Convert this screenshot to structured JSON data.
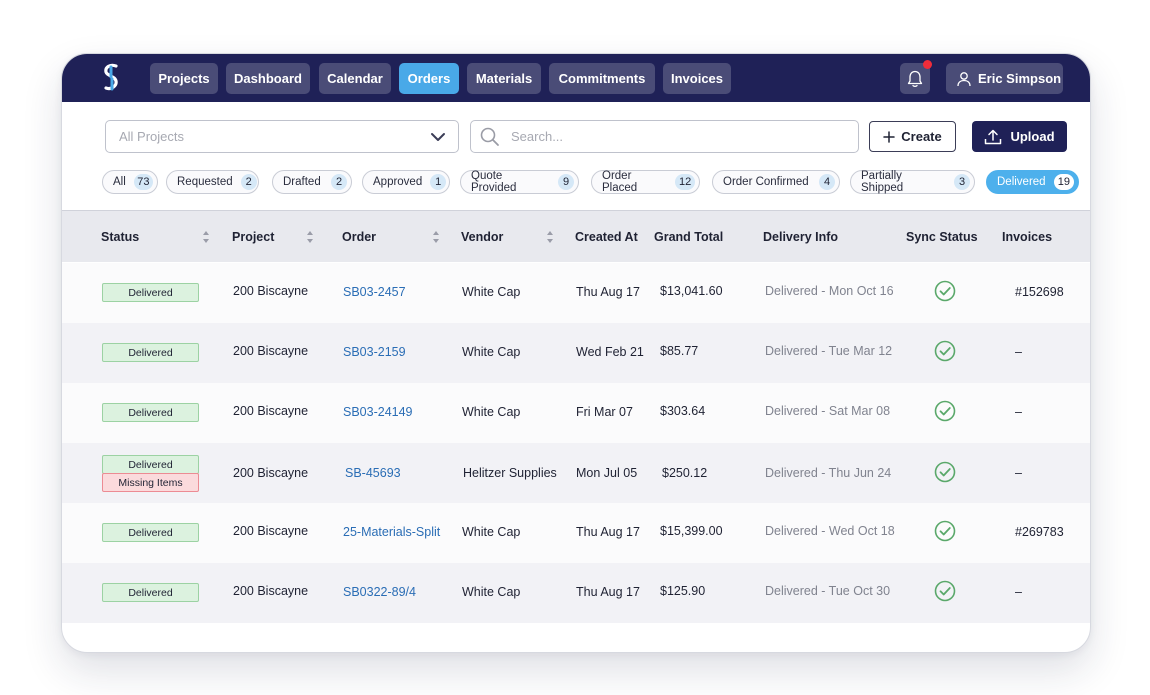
{
  "nav": {
    "items": [
      {
        "label": "Projects",
        "active": false
      },
      {
        "label": "Dashboard",
        "active": false
      },
      {
        "label": "Calendar",
        "active": false
      },
      {
        "label": "Orders",
        "active": true
      },
      {
        "label": "Materials",
        "active": false
      },
      {
        "label": "Commitments",
        "active": false
      },
      {
        "label": "Invoices",
        "active": false
      }
    ],
    "user_name": "Eric Simpson",
    "has_notification": true
  },
  "toolbar": {
    "project_select_value": "All Projects",
    "search_placeholder": "Search...",
    "create_label": "Create",
    "upload_label": "Upload"
  },
  "filters": [
    {
      "label": "All",
      "count": "73",
      "active": false
    },
    {
      "label": "Requested",
      "count": "2",
      "active": false
    },
    {
      "label": "Drafted",
      "count": "2",
      "active": false
    },
    {
      "label": "Approved",
      "count": "1",
      "active": false
    },
    {
      "label": "Quote Provided",
      "count": "9",
      "active": false
    },
    {
      "label": "Order Placed",
      "count": "12",
      "active": false
    },
    {
      "label": "Order Confirmed",
      "count": "4",
      "active": false
    },
    {
      "label": "Partially Shipped",
      "count": "3",
      "active": false
    },
    {
      "label": "Delivered",
      "count": "19",
      "active": true
    }
  ],
  "table": {
    "columns": {
      "status": "Status",
      "project": "Project",
      "order": "Order",
      "vendor": "Vendor",
      "created_at": "Created At",
      "grand_total": "Grand Total",
      "delivery_info": "Delivery Info",
      "sync_status": "Sync Status",
      "invoices": "Invoices"
    },
    "rows": [
      {
        "status": "Delivered",
        "status_extra": "",
        "project": "200 Biscayne",
        "order": "SB03-2457",
        "vendor": "White Cap",
        "created_at": "Thu Aug 17",
        "grand_total": "$13,041.60",
        "delivery_info": "Delivered - Mon Oct 16",
        "synced": true,
        "invoice": "#152698"
      },
      {
        "status": "Delivered",
        "status_extra": "",
        "project": "200 Biscayne",
        "order": "SB03-2159",
        "vendor": "White Cap",
        "created_at": "Wed Feb 21",
        "grand_total": "$85.77",
        "delivery_info": "Delivered - Tue Mar 12",
        "synced": true,
        "invoice": "–"
      },
      {
        "status": "Delivered",
        "status_extra": "",
        "project": "200 Biscayne",
        "order": "SB03-24149",
        "vendor": "White Cap",
        "created_at": "Fri Mar 07",
        "grand_total": "$303.64",
        "delivery_info": "Delivered - Sat Mar 08",
        "synced": true,
        "invoice": "–"
      },
      {
        "status": "Delivered",
        "status_extra": "Missing Items",
        "project": "200 Biscayne",
        "order": "SB-45693",
        "vendor": "Helitzer Supplies",
        "created_at": "Mon Jul 05",
        "grand_total": "$250.12",
        "delivery_info": "Delivered - Thu Jun 24",
        "synced": true,
        "invoice": "–"
      },
      {
        "status": "Delivered",
        "status_extra": "",
        "project": "200 Biscayne",
        "order": "25-Materials-Split",
        "vendor": "White Cap",
        "created_at": "Thu Aug 17",
        "grand_total": "$15,399.00",
        "delivery_info": "Delivered - Wed Oct 18",
        "synced": true,
        "invoice": "#269783"
      },
      {
        "status": "Delivered",
        "status_extra": "",
        "project": "200 Biscayne",
        "order": "SB0322-89/4",
        "vendor": "White Cap",
        "created_at": "Thu Aug 17",
        "grand_total": "$125.90",
        "delivery_info": "Delivered - Tue Oct 30",
        "synced": true,
        "invoice": "–"
      }
    ]
  },
  "colors": {
    "nav_bg": "#1f2157",
    "nav_button": "#4a4c77",
    "accent": "#49a9e8",
    "link": "#2a6db5",
    "delivered_badge": "#dcf2df",
    "missing_badge": "#fbdadc",
    "check": "#5aa86a"
  }
}
